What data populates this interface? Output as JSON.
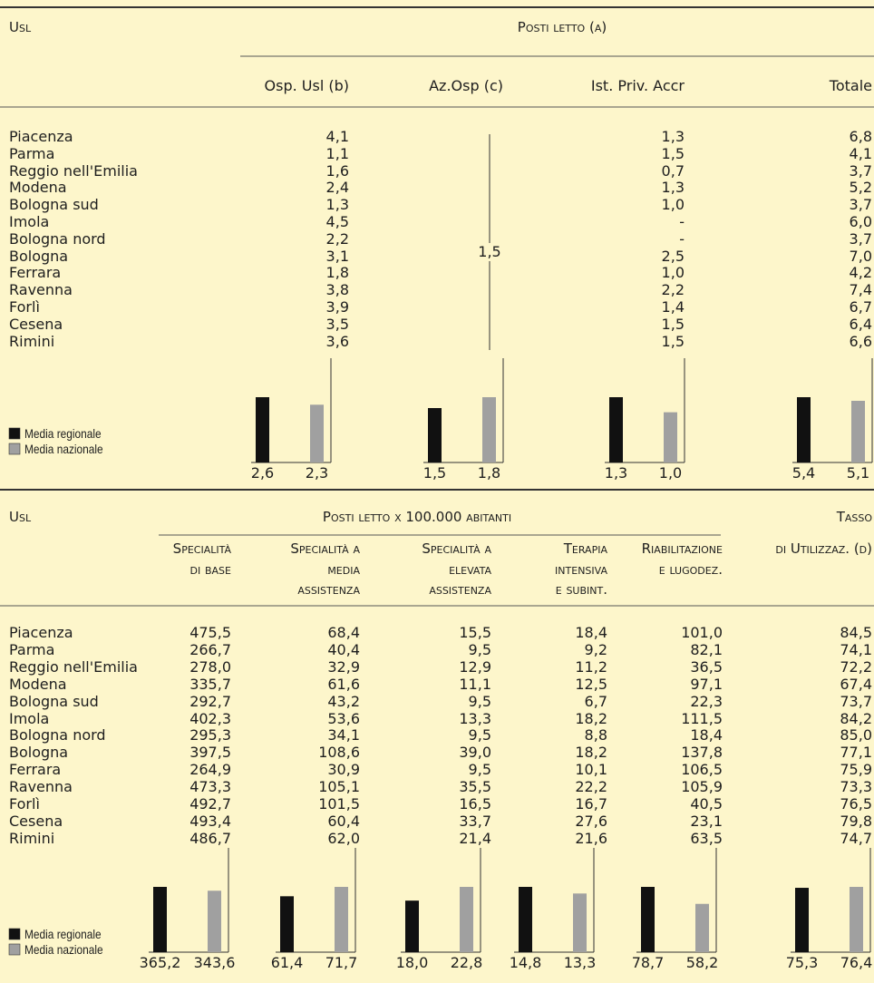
{
  "top": {
    "id_header": "Usl",
    "group_header": "Posti letto (a)",
    "columns": [
      "Osp. Usl (b)",
      "Az.Osp (c)",
      "Ist. Priv. Accr",
      "Totale"
    ],
    "rows": [
      [
        "Piacenza",
        "4,1",
        "1,3",
        "6,8"
      ],
      [
        "Parma",
        "1,1",
        "1,5",
        "4,1"
      ],
      [
        "Reggio nell'Emilia",
        "1,6",
        "0,7",
        "3,7"
      ],
      [
        "Modena",
        "2,4",
        "1,3",
        "5,2"
      ],
      [
        "Bologna sud",
        "1,3",
        "1,0",
        "3,7"
      ],
      [
        "Imola",
        "4,5",
        "-",
        "6,0"
      ],
      [
        "Bologna nord",
        "2,2",
        "-",
        "3,7"
      ],
      [
        "Bologna",
        "3,1",
        "2,5",
        "7,0"
      ],
      [
        "Ferrara",
        "1,8",
        "1,0",
        "4,2"
      ],
      [
        "Ravenna",
        "3,8",
        "2,2",
        "7,4"
      ],
      [
        "Forlì",
        "3,9",
        "1,4",
        "6,7"
      ],
      [
        "Cesena",
        "3,5",
        "1,5",
        "6,4"
      ],
      [
        "Rimini",
        "3,6",
        "1,5",
        "6,6"
      ]
    ],
    "az_osp_value": "1,5",
    "legend": [
      "Media regionale",
      "Media nazionale"
    ],
    "charts": [
      {
        "values": [
          2.6,
          2.3
        ],
        "labels": [
          "2,6",
          "2,3"
        ]
      },
      {
        "values": [
          1.5,
          1.8
        ],
        "labels": [
          "1,5",
          "1,8"
        ]
      },
      {
        "values": [
          1.3,
          1.0
        ],
        "labels": [
          "1,3",
          "1,0"
        ]
      },
      {
        "values": [
          5.4,
          5.1
        ],
        "labels": [
          "5,4",
          "5,1"
        ]
      }
    ]
  },
  "bottom": {
    "id_header": "Usl",
    "group_header": "Posti letto x 100.000 abitanti",
    "rate_header": "Tasso",
    "columns": [
      [
        "Specialità",
        "di base"
      ],
      [
        "Specialità a",
        "media",
        "assistenza"
      ],
      [
        "Specialità a",
        "elevata",
        "assistenza"
      ],
      [
        "Terapia",
        "intensiva",
        "e subint."
      ],
      [
        "Riabilitazione",
        "e lugodez."
      ],
      [
        "di Utilizzaz. (d)"
      ]
    ],
    "rows": [
      [
        "Piacenza",
        "475,5",
        "68,4",
        "15,5",
        "18,4",
        "101,0",
        "84,5"
      ],
      [
        "Parma",
        "266,7",
        "40,4",
        "9,5",
        "9,2",
        "82,1",
        "74,1"
      ],
      [
        "Reggio nell'Emilia",
        "278,0",
        "32,9",
        "12,9",
        "11,2",
        "36,5",
        "72,2"
      ],
      [
        "Modena",
        "335,7",
        "61,6",
        "11,1",
        "12,5",
        "97,1",
        "67,4"
      ],
      [
        "Bologna sud",
        "292,7",
        "43,2",
        "9,5",
        "6,7",
        "22,3",
        "73,7"
      ],
      [
        "Imola",
        "402,3",
        "53,6",
        "13,3",
        "18,2",
        "111,5",
        "84,2"
      ],
      [
        "Bologna nord",
        "295,3",
        "34,1",
        "9,5",
        "8,8",
        "18,4",
        "85,0"
      ],
      [
        "Bologna",
        "397,5",
        "108,6",
        "39,0",
        "18,2",
        "137,8",
        "77,1"
      ],
      [
        "Ferrara",
        "264,9",
        "30,9",
        "9,5",
        "10,1",
        "106,5",
        "75,9"
      ],
      [
        "Ravenna",
        "473,3",
        "105,1",
        "35,5",
        "22,2",
        "105,9",
        "73,3"
      ],
      [
        "Forlì",
        "492,7",
        "101,5",
        "16,5",
        "16,7",
        "40,5",
        "76,5"
      ],
      [
        "Cesena",
        "493,4",
        "60,4",
        "33,7",
        "27,6",
        "23,1",
        "79,8"
      ],
      [
        "Rimini",
        "486,7",
        "62,0",
        "21,4",
        "21,6",
        "63,5",
        "74,7"
      ]
    ],
    "legend": [
      "Media regionale",
      "Media nazionale"
    ],
    "charts": [
      {
        "values": [
          365.2,
          343.6
        ],
        "labels": [
          "365,2",
          "343,6"
        ]
      },
      {
        "values": [
          61.4,
          71.7
        ],
        "labels": [
          "61,4",
          "71,7"
        ]
      },
      {
        "values": [
          18.0,
          22.8
        ],
        "labels": [
          "18,0",
          "22,8"
        ]
      },
      {
        "values": [
          14.8,
          13.3
        ],
        "labels": [
          "14,8",
          "13,3"
        ]
      },
      {
        "values": [
          78.7,
          58.2
        ],
        "labels": [
          "78,7",
          "58,2"
        ]
      },
      {
        "values": [
          75.3,
          76.4
        ],
        "labels": [
          "75,3",
          "76,4"
        ]
      }
    ]
  }
}
